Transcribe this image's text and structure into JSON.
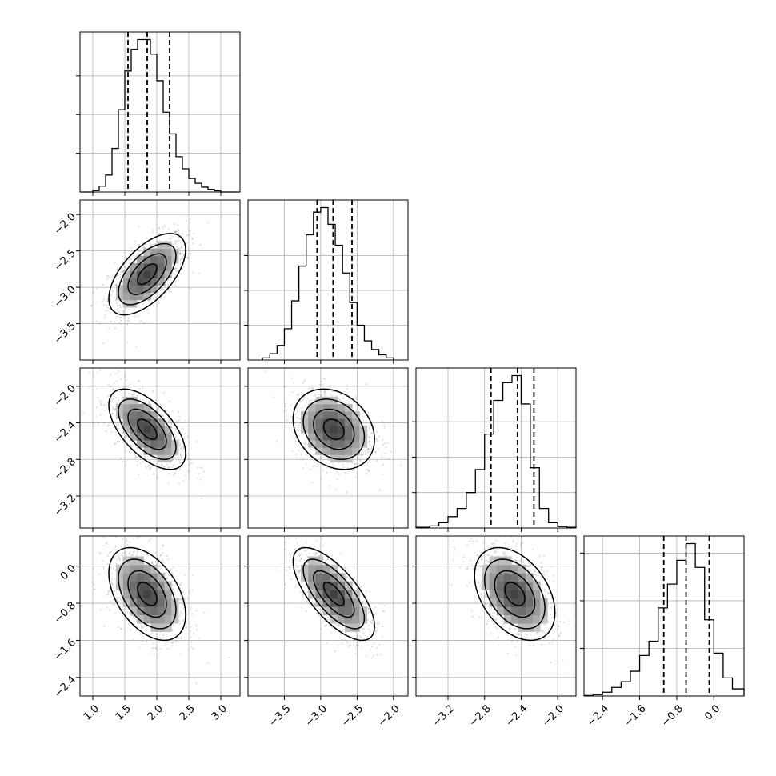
{
  "chart_data": {
    "type": "corner",
    "n_params": 4,
    "quantiles": [
      0.16,
      0.5,
      0.84
    ],
    "colors": {
      "frame": "#000000",
      "grid": "#b0b0b0",
      "density": "#000000"
    },
    "grid": true,
    "params": [
      {
        "range": [
          0.8,
          3.3
        ],
        "ticks": [
          "1.0",
          "1.5",
          "2.0",
          "2.5",
          "3.0"
        ],
        "tick_values": [
          1.0,
          1.5,
          2.0,
          2.5,
          3.0
        ]
      },
      {
        "range": [
          -4.0,
          -1.8
        ],
        "ticks": [
          "-3.5",
          "-3.0",
          "-2.5",
          "-2.0"
        ],
        "tick_values": [
          -3.5,
          -3.0,
          -2.5,
          -2.0
        ]
      },
      {
        "range": [
          -3.55,
          -1.8
        ],
        "ticks": [
          "-3.2",
          "-2.8",
          "-2.4",
          "-2.0"
        ],
        "tick_values": [
          -3.2,
          -2.8,
          -2.4,
          -2.0
        ]
      },
      {
        "range": [
          -2.8,
          0.65
        ],
        "ticks": [
          "-2.4",
          "-1.6",
          "-0.8",
          "0.0"
        ],
        "tick_values": [
          -2.4,
          -1.6,
          -0.8,
          0.0
        ]
      }
    ],
    "marginals": [
      {
        "param": 0,
        "quantile_values": [
          1.55,
          1.85,
          2.2
        ],
        "bins": [
          0.8,
          1.0,
          1.1,
          1.2,
          1.3,
          1.4,
          1.5,
          1.6,
          1.7,
          1.8,
          1.9,
          2.0,
          2.1,
          2.2,
          2.3,
          2.4,
          2.5,
          2.6,
          2.7,
          2.8,
          2.9,
          3.0,
          3.3
        ],
        "counts": [
          0,
          30,
          120,
          350,
          900,
          1700,
          2500,
          2950,
          3150,
          3150,
          2850,
          2300,
          1650,
          1200,
          730,
          480,
          280,
          180,
          100,
          55,
          25,
          0
        ],
        "ymax": 3150,
        "y_ticks": [
          800,
          1600,
          2400
        ]
      },
      {
        "param": 1,
        "quantile_values": [
          -3.05,
          -2.83,
          -2.57
        ],
        "bins": [
          -3.8,
          -3.7,
          -3.6,
          -3.5,
          -3.4,
          -3.3,
          -3.2,
          -3.1,
          -3.0,
          -2.9,
          -2.8,
          -2.7,
          -2.6,
          -2.5,
          -2.4,
          -2.3,
          -2.2,
          -2.1,
          -2.0
        ],
        "counts": [
          60,
          180,
          420,
          900,
          1700,
          2700,
          3600,
          4250,
          4380,
          3900,
          3300,
          2500,
          1650,
          1000,
          550,
          300,
          150,
          60
        ],
        "ymax": 4380,
        "y_ticks": [
          1000,
          2000,
          3000
        ]
      },
      {
        "param": 2,
        "quantile_values": [
          -2.73,
          -2.44,
          -2.26
        ],
        "bins": [
          -3.55,
          -3.4,
          -3.3,
          -3.2,
          -3.1,
          -3.0,
          -2.9,
          -2.8,
          -2.7,
          -2.6,
          -2.5,
          -2.4,
          -2.3,
          -2.2,
          -2.1,
          -2.0,
          -1.9,
          -1.8
        ],
        "counts": [
          20,
          60,
          150,
          320,
          550,
          1000,
          1650,
          2650,
          3600,
          4100,
          4300,
          3500,
          1700,
          550,
          150,
          40,
          20
        ],
        "ymax": 4300,
        "y_ticks": [
          1000,
          2000,
          3000
        ]
      },
      {
        "param": 3,
        "quantile_values": [
          -1.08,
          -0.6,
          -0.1
        ],
        "bins": [
          -2.8,
          -2.6,
          -2.4,
          -2.2,
          -2.0,
          -1.8,
          -1.6,
          -1.4,
          -1.2,
          -1.0,
          -0.8,
          -0.6,
          -0.4,
          -0.2,
          0.0,
          0.2,
          0.4,
          0.65
        ],
        "counts": [
          10,
          30,
          80,
          180,
          300,
          520,
          850,
          1150,
          1850,
          2350,
          2850,
          3200,
          2700,
          1600,
          900,
          380,
          150
        ],
        "ymax": 3200,
        "y_ticks": [
          1000,
          2000,
          3000
        ]
      }
    ],
    "pairs": [
      {
        "x_param": 0,
        "y_param": 1,
        "mean": [
          1.85,
          -2.82
        ],
        "sd": [
          0.3,
          0.28
        ],
        "rho": 0.6
      },
      {
        "x_param": 0,
        "y_param": 2,
        "mean": [
          1.85,
          -2.47
        ],
        "sd": [
          0.3,
          0.22
        ],
        "rho": -0.6
      },
      {
        "x_param": 1,
        "y_param": 2,
        "mean": [
          -2.82,
          -2.47
        ],
        "sd": [
          0.28,
          0.22
        ],
        "rho": -0.25
      },
      {
        "x_param": 0,
        "y_param": 3,
        "mean": [
          1.85,
          -0.6
        ],
        "sd": [
          0.3,
          0.5
        ],
        "rho": -0.45
      },
      {
        "x_param": 1,
        "y_param": 3,
        "mean": [
          -2.82,
          -0.6
        ],
        "sd": [
          0.28,
          0.5
        ],
        "rho": -0.7
      },
      {
        "x_param": 2,
        "y_param": 3,
        "mean": [
          -2.47,
          -0.6
        ],
        "sd": [
          0.22,
          0.5
        ],
        "rho": -0.4
      }
    ],
    "contour_levels": [
      0.5,
      1.0,
      1.5,
      2.0
    ]
  }
}
